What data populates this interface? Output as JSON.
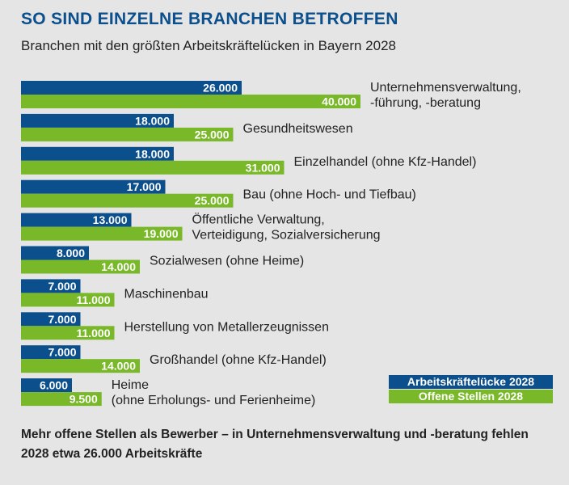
{
  "title": "SO SIND EINZELNE BRANCHEN BETROFFEN",
  "subtitle": "Branchen mit den größten Arbeitskräftelücken in Bayern 2028",
  "footnote": "Mehr offene Stellen als Bewerber – in Unternehmensverwaltung und -beratung fehlen 2028 etwa 26.000 Arbeitskräfte",
  "colors": {
    "luecke": "#0b4f8c",
    "stellen": "#79b829",
    "background": "#e5e5e5"
  },
  "chart_data": {
    "type": "bar",
    "orientation": "horizontal",
    "categories": [
      [
        "Unternehmensverwaltung,",
        "-führung, -beratung"
      ],
      [
        "Gesundheitswesen"
      ],
      [
        "Einzelhandel (ohne Kfz-Handel)"
      ],
      [
        "Bau (ohne Hoch- und Tiefbau)"
      ],
      [
        "Öffentliche Verwaltung,",
        "Verteidigung, Sozialversicherung"
      ],
      [
        "Sozialwesen (ohne Heime)"
      ],
      [
        "Maschinenbau"
      ],
      [
        "Herstellung von Metallerzeugnissen"
      ],
      [
        "Großhandel (ohne Kfz-Handel)"
      ],
      [
        "Heime",
        "(ohne Erholungs- und Ferienheime)"
      ]
    ],
    "series": [
      {
        "name": "Arbeitskräftelücke 2028",
        "color": "#0b4f8c",
        "values": [
          26000,
          18000,
          18000,
          17000,
          13000,
          8000,
          7000,
          7000,
          7000,
          6000
        ],
        "labels": [
          "26.000",
          "18.000",
          "18.000",
          "17.000",
          "13.000",
          "8.000",
          "7.000",
          "7.000",
          "7.000",
          "6.000"
        ]
      },
      {
        "name": "Offene Stellen 2028",
        "color": "#79b829",
        "values": [
          40000,
          25000,
          31000,
          25000,
          19000,
          14000,
          11000,
          11000,
          14000,
          9500
        ],
        "labels": [
          "40.000",
          "25.000",
          "31.000",
          "25.000",
          "19.000",
          "14.000",
          "11.000",
          "11.000",
          "14.000",
          "9.500"
        ]
      }
    ],
    "legend_position": "bottom-right",
    "grid": false
  }
}
